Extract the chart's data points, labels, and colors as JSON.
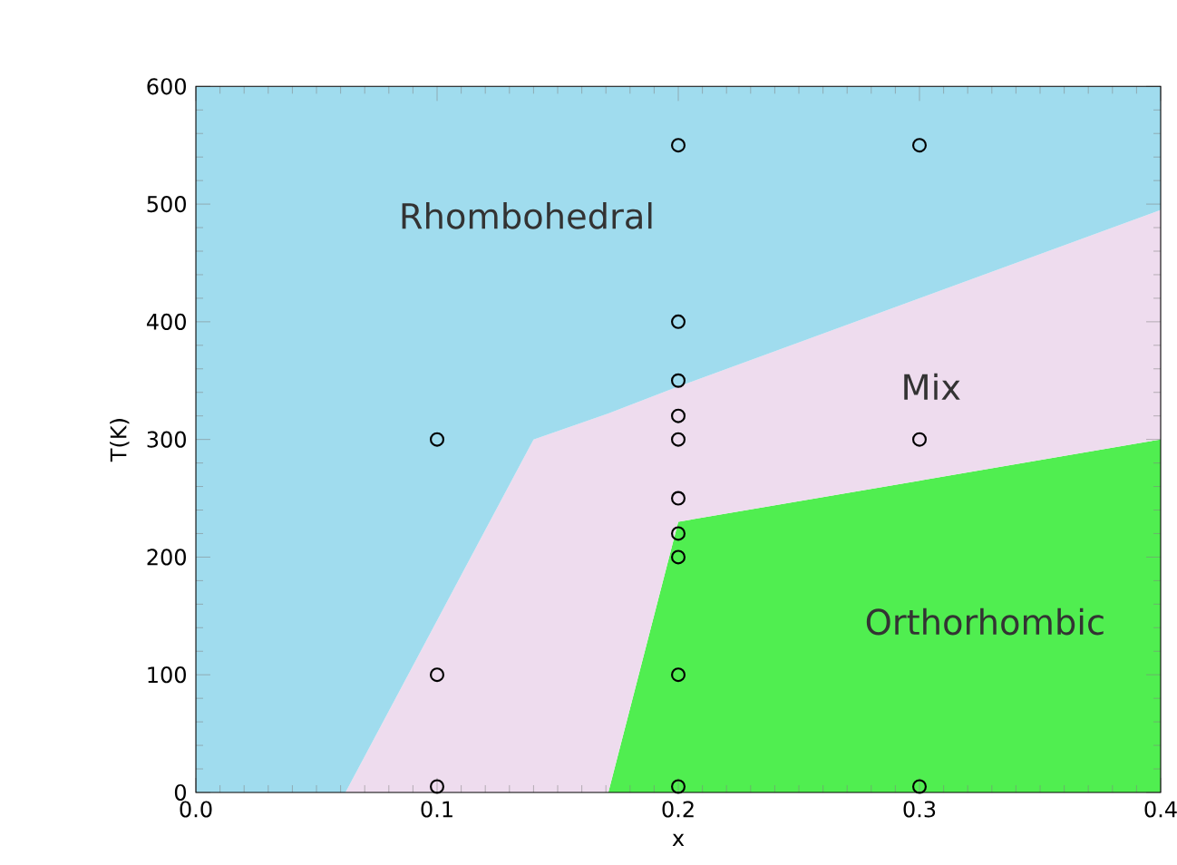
{
  "chart_data": {
    "type": "area",
    "stacked": true,
    "xlabel": "x",
    "ylabel": "T(K)",
    "xlim": [
      0,
      0.4
    ],
    "ylim": [
      0,
      600
    ],
    "xticks": [
      {
        "value": 0,
        "label": "0.0"
      },
      0.1,
      0.2,
      0.3,
      0.4
    ],
    "yticks": [
      0,
      100,
      200,
      300,
      400,
      500,
      600
    ],
    "grid": false,
    "x": [
      0,
      0.062,
      0.14,
      0.171,
      0.2,
      0.4
    ],
    "series": [
      {
        "color": "#50ee50",
        "values": [
          0,
          0,
          0,
          0,
          230,
          300
        ]
      },
      {
        "color": "#eedcee",
        "values": [
          0,
          0,
          300,
          322,
          115,
          195
        ]
      },
      {
        "color": "#a0dcee",
        "values": [
          600,
          600,
          300,
          278,
          255,
          105
        ]
      },
      {
        "type": "scatter",
        "marker": "circle",
        "color": "#000000",
        "x": [
          0.1,
          0.1,
          0.1,
          0.2,
          0.2,
          0.2,
          0.2,
          0.2,
          0.2,
          0.2,
          0.2,
          0.2,
          0.2,
          0.3,
          0.3,
          0.3
        ],
        "values": [
          300,
          100,
          5,
          550,
          400,
          350,
          320,
          300,
          250,
          220,
          200,
          100,
          5,
          550,
          300,
          5
        ]
      }
    ],
    "annotations": [
      "Rhombohedral",
      "Mix",
      "Orthorhombic"
    ]
  }
}
